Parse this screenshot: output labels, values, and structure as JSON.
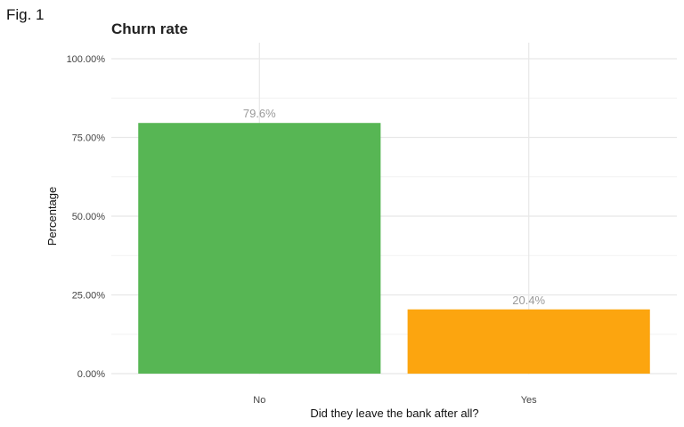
{
  "figure_label": "Fig. 1",
  "chart_data": {
    "type": "bar",
    "title": "Churn rate",
    "xlabel": "Did they leave the bank after all?",
    "ylabel": "Percentage",
    "categories": [
      "No",
      "Yes"
    ],
    "values": [
      0.796,
      0.204
    ],
    "data_labels": [
      "79.6%",
      "20.4%"
    ],
    "bar_colors": [
      "#57b654",
      "#fca50f"
    ],
    "ylim": [
      0,
      1
    ],
    "yticks": [
      0,
      0.25,
      0.5,
      0.75,
      1.0
    ],
    "ytick_labels": [
      "0.00%",
      "25.00%",
      "50.00%",
      "75.00%",
      "100.00%"
    ],
    "grid": true,
    "legend": "none"
  }
}
